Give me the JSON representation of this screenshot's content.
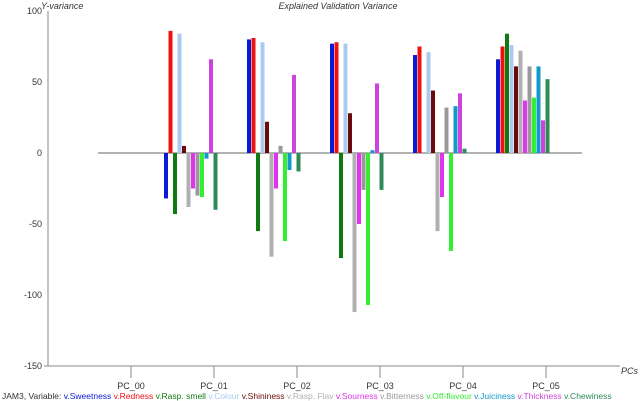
{
  "chart_data": {
    "type": "bar",
    "title": "Explained Validation Variance",
    "ylabel": "Y-variance",
    "xlabel": "PCs",
    "ylim": [
      -150,
      100
    ],
    "yticks": [
      100,
      50,
      0,
      -50,
      -100,
      -150
    ],
    "categories": [
      "PC_00",
      "PC_01",
      "PC_02",
      "PC_03",
      "PC_04",
      "PC_05"
    ],
    "series": [
      {
        "name": "v.Sweetness",
        "color": "#0b1ad6",
        "values": [
          0,
          -32,
          80,
          77,
          69,
          66
        ]
      },
      {
        "name": "v.Redness",
        "color": "#ee1111",
        "values": [
          0,
          86,
          81,
          78,
          75,
          75
        ]
      },
      {
        "name": "v.Rasp. smell",
        "color": "#107a10",
        "values": [
          0,
          -43,
          -55,
          -74,
          0,
          84
        ]
      },
      {
        "name": "v.Colour",
        "color": "#a9cbef",
        "values": [
          0,
          84,
          78,
          77,
          71,
          76
        ]
      },
      {
        "name": "v.Shininess",
        "color": "#6b0a0a",
        "values": [
          0,
          5,
          22,
          28,
          44,
          61
        ]
      },
      {
        "name": "v.Rasp. Flav",
        "color": "#b0b0b0",
        "values": [
          0,
          -38,
          -73,
          -112,
          -55,
          72
        ]
      },
      {
        "name": "v.Sourness",
        "color": "#e034ee",
        "values": [
          0,
          -25,
          -25,
          -50,
          -31,
          37
        ]
      },
      {
        "name": "v.Bitterness",
        "color": "#999999",
        "values": [
          0,
          -30,
          5,
          -26,
          32,
          61
        ]
      },
      {
        "name": "v.Off-flavour",
        "color": "#33ee33",
        "values": [
          0,
          -31,
          -62,
          -107,
          -69,
          39
        ]
      },
      {
        "name": "v.Juiciness",
        "color": "#1199cc",
        "values": [
          0,
          -4,
          -12,
          2,
          33,
          61
        ]
      },
      {
        "name": "v.Thickness",
        "color": "#cc44dd",
        "values": [
          0,
          66,
          55,
          49,
          42,
          23
        ]
      },
      {
        "name": "v.Chewiness",
        "color": "#2e8b57",
        "values": [
          0,
          -40,
          -13,
          -26,
          3,
          52
        ]
      }
    ],
    "legend_placement": "bottom",
    "grid": false
  },
  "footer": {
    "prefix": "JAM3, Variable:"
  }
}
